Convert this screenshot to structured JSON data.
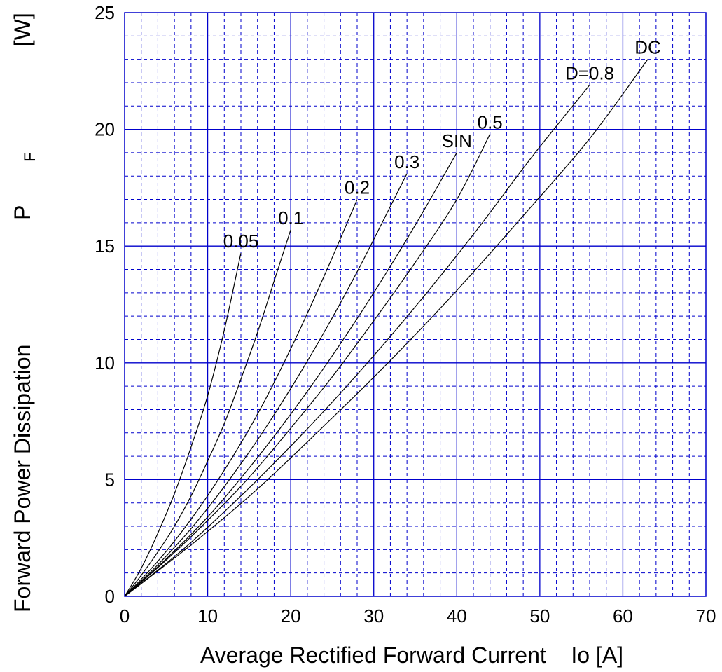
{
  "chart_data": {
    "type": "line",
    "xlabel": "Average Rectified Forward Current    Io [A]",
    "ylabel": {
      "main": "Forward Power Dissipation",
      "symbol": "P",
      "subscript": "F",
      "unit": "[W]"
    },
    "xlim": [
      0,
      70
    ],
    "ylim": [
      0,
      25
    ],
    "x_ticks": [
      "0",
      "10",
      "20",
      "30",
      "40",
      "50",
      "60",
      "70"
    ],
    "y_ticks": [
      "0",
      "5",
      "10",
      "15",
      "20",
      "25"
    ],
    "grid": true,
    "grid_color": "#0000cc",
    "line_color": "#000000",
    "series": [
      {
        "name": "0.05",
        "label": "0.05",
        "points": [
          [
            0,
            0
          ],
          [
            2,
            1.2
          ],
          [
            4,
            2.7
          ],
          [
            6,
            4.4
          ],
          [
            8,
            6.4
          ],
          [
            10,
            8.6
          ],
          [
            12,
            11.4
          ],
          [
            14,
            14.7
          ]
        ]
      },
      {
        "name": "0.1",
        "label": "0.1",
        "points": [
          [
            0,
            0
          ],
          [
            2,
            0.9
          ],
          [
            4,
            1.9
          ],
          [
            6,
            3.0
          ],
          [
            8,
            4.3
          ],
          [
            10,
            5.8
          ],
          [
            12,
            7.4
          ],
          [
            14,
            9.3
          ],
          [
            16,
            11.3
          ],
          [
            18,
            13.5
          ],
          [
            20,
            15.7
          ]
        ]
      },
      {
        "name": "0.2",
        "label": "0.2",
        "points": [
          [
            0,
            0
          ],
          [
            4,
            1.5
          ],
          [
            8,
            3.3
          ],
          [
            12,
            5.4
          ],
          [
            16,
            7.8
          ],
          [
            20,
            10.6
          ],
          [
            24,
            13.7
          ],
          [
            28,
            17.0
          ]
        ]
      },
      {
        "name": "0.3",
        "label": "0.3",
        "points": [
          [
            0,
            0
          ],
          [
            4,
            1.35
          ],
          [
            8,
            2.9
          ],
          [
            12,
            4.7
          ],
          [
            16,
            6.7
          ],
          [
            20,
            8.9
          ],
          [
            24,
            11.3
          ],
          [
            28,
            13.9
          ],
          [
            32,
            16.7
          ],
          [
            34,
            18.1
          ]
        ]
      },
      {
        "name": "SIN",
        "label": "SIN",
        "points": [
          [
            0,
            0
          ],
          [
            5,
            1.6
          ],
          [
            10,
            3.4
          ],
          [
            15,
            5.5
          ],
          [
            20,
            7.8
          ],
          [
            25,
            10.3
          ],
          [
            30,
            13.0
          ],
          [
            35,
            15.9
          ],
          [
            40,
            19.0
          ]
        ]
      },
      {
        "name": "0.5",
        "label": "0.5",
        "points": [
          [
            0,
            0
          ],
          [
            5,
            1.55
          ],
          [
            10,
            3.25
          ],
          [
            15,
            5.1
          ],
          [
            20,
            7.2
          ],
          [
            25,
            9.4
          ],
          [
            30,
            11.8
          ],
          [
            35,
            14.3
          ],
          [
            40,
            17.0
          ],
          [
            44,
            19.8
          ]
        ]
      },
      {
        "name": "D=0.8",
        "label": "D=0.8",
        "points": [
          [
            0,
            0
          ],
          [
            7,
            2.0
          ],
          [
            14,
            4.3
          ],
          [
            21,
            6.8
          ],
          [
            28,
            9.5
          ],
          [
            35,
            12.4
          ],
          [
            42,
            15.5
          ],
          [
            49,
            18.8
          ],
          [
            56,
            21.9
          ]
        ]
      },
      {
        "name": "DC",
        "label": "DC",
        "points": [
          [
            0,
            0
          ],
          [
            8,
            2.2
          ],
          [
            16,
            4.6
          ],
          [
            24,
            7.3
          ],
          [
            32,
            10.1
          ],
          [
            40,
            13.1
          ],
          [
            48,
            16.3
          ],
          [
            56,
            19.6
          ],
          [
            63,
            23.0
          ]
        ]
      }
    ]
  }
}
